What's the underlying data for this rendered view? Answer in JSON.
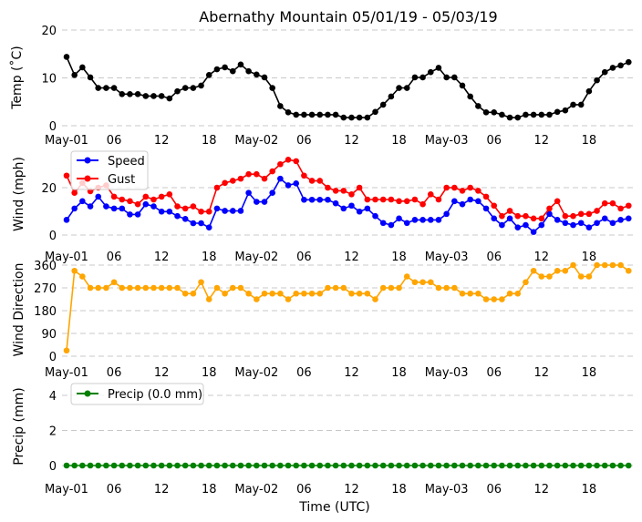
{
  "title": "Abernathy Mountain 05/01/19 - 05/03/19",
  "xlabel": "Time (UTC)",
  "x_tick_labels": [
    "May-01",
    "06",
    "12",
    "18",
    "May-02",
    "06",
    "12",
    "18",
    "May-03",
    "06",
    "12",
    "18"
  ],
  "chart_data": [
    {
      "type": "line",
      "ylabel": "Temp (˚C)",
      "yticks": [
        0,
        10,
        20
      ],
      "ylim": [
        0,
        20
      ],
      "grid": true,
      "time_step": "1 hour",
      "x_range": [
        "May-01 00:00",
        "May-03 23:00"
      ],
      "series": [
        {
          "color": "#000000",
          "values": [
            14.4,
            10.6,
            12.2,
            10.1,
            7.9,
            7.9,
            7.9,
            6.6,
            6.6,
            6.6,
            6.2,
            6.2,
            6.2,
            5.7,
            7.2,
            7.9,
            7.9,
            8.4,
            10.6,
            11.8,
            12.2,
            11.4,
            12.8,
            11.4,
            10.7,
            10.1,
            7.9,
            4.1,
            2.8,
            2.3,
            2.3,
            2.3,
            2.3,
            2.3,
            2.3,
            1.7,
            1.7,
            1.7,
            1.7,
            2.9,
            4.4,
            6.1,
            7.9,
            7.9,
            10.1,
            10.1,
            11.2,
            12.1,
            10.1,
            10.1,
            8.4,
            6.1,
            4.1,
            2.8,
            2.8,
            2.3,
            1.7,
            1.7,
            2.3,
            2.3,
            2.3,
            2.3,
            2.9,
            3.2,
            4.4,
            4.4,
            7.2,
            9.5,
            11.2,
            12.1,
            12.6,
            13.3
          ]
        }
      ]
    },
    {
      "type": "line",
      "ylabel": "Wind (mph)",
      "yticks": [
        0,
        20
      ],
      "grid": true,
      "legend": "top-left",
      "time_step": "1 hour",
      "x_range": [
        "May-01 00:00",
        "May-03 23:00"
      ],
      "series": [
        {
          "name": "Speed",
          "color": "#0000ff",
          "values": [
            6.4,
            11.2,
            14.3,
            12.1,
            16.2,
            12.1,
            11.2,
            11.2,
            8.7,
            8.7,
            13.0,
            12.1,
            9.9,
            9.9,
            8.0,
            6.8,
            5.0,
            5.0,
            3.2,
            11.2,
            10.2,
            10.2,
            10.2,
            17.8,
            14.0,
            14.0,
            17.8,
            23.8,
            21.0,
            21.8,
            14.9,
            14.9,
            14.9,
            14.9,
            13.4,
            11.2,
            12.4,
            9.9,
            11.2,
            8.0,
            5.1,
            4.2,
            7.0,
            5.1,
            6.4,
            6.4,
            6.4,
            6.4,
            8.9,
            14.3,
            13.0,
            15.0,
            14.3,
            11.2,
            7.0,
            4.2,
            7.0,
            3.2,
            4.2,
            1.3,
            4.2,
            8.9,
            6.4,
            5.1,
            4.2,
            5.1,
            3.2,
            5.1,
            7.0,
            5.1,
            6.4,
            7.0
          ]
        },
        {
          "name": "Gust",
          "color": "#ff0000",
          "values": [
            25.1,
            17.8,
            22.0,
            18.5,
            20.0,
            21.0,
            16.2,
            15.0,
            14.3,
            13.0,
            16.2,
            15.0,
            16.2,
            17.2,
            12.1,
            11.2,
            12.1,
            9.9,
            9.9,
            20.0,
            22.0,
            22.9,
            23.8,
            25.7,
            25.7,
            23.8,
            26.9,
            29.9,
            31.8,
            31.2,
            25.1,
            22.9,
            22.9,
            20.0,
            18.7,
            18.7,
            17.2,
            20.0,
            15.0,
            15.0,
            15.0,
            15.0,
            14.3,
            14.3,
            15.0,
            13.0,
            17.2,
            15.0,
            20.0,
            20.0,
            18.7,
            20.0,
            18.7,
            16.2,
            12.4,
            8.0,
            10.2,
            8.0,
            8.0,
            7.0,
            7.0,
            11.2,
            14.3,
            8.0,
            8.0,
            8.9,
            8.9,
            10.2,
            13.4,
            13.4,
            11.2,
            12.4
          ]
        }
      ]
    },
    {
      "type": "line",
      "ylabel": "Wind Direction",
      "yticks": [
        0,
        90,
        180,
        270,
        360
      ],
      "ylim": [
        0,
        360
      ],
      "grid": true,
      "time_step": "1 hour",
      "x_range": [
        "May-01 00:00",
        "May-03 23:00"
      ],
      "series": [
        {
          "color": "#ffa500",
          "values": [
            22.5,
            337.5,
            315,
            270,
            270,
            270,
            292.5,
            270,
            270,
            270,
            270,
            270,
            270,
            270,
            270,
            247.5,
            247.5,
            292.5,
            225,
            270,
            247.5,
            270,
            270,
            247.5,
            225,
            247.5,
            247.5,
            247.5,
            225,
            247.5,
            247.5,
            247.5,
            247.5,
            270,
            270,
            270,
            247.5,
            247.5,
            247.5,
            225,
            270,
            270,
            270,
            315,
            292.5,
            292.5,
            292.5,
            270,
            270,
            270,
            247.5,
            247.5,
            247.5,
            225,
            225,
            225,
            247.5,
            247.5,
            292.5,
            337.5,
            315,
            315,
            337.5,
            337.5,
            360,
            315,
            315,
            360,
            360,
            360,
            360,
            337.5
          ]
        }
      ]
    },
    {
      "type": "line",
      "ylabel": "Precip (mm)",
      "yticks": [
        0,
        2,
        4
      ],
      "grid": true,
      "legend": "top-left",
      "time_step": "1 hour",
      "x_range": [
        "May-01 00:00",
        "May-03 23:00"
      ],
      "series": [
        {
          "name": "Precip (0.0 mm)",
          "color": "#008000",
          "values": [
            0,
            0,
            0,
            0,
            0,
            0,
            0,
            0,
            0,
            0,
            0,
            0,
            0,
            0,
            0,
            0,
            0,
            0,
            0,
            0,
            0,
            0,
            0,
            0,
            0,
            0,
            0,
            0,
            0,
            0,
            0,
            0,
            0,
            0,
            0,
            0,
            0,
            0,
            0,
            0,
            0,
            0,
            0,
            0,
            0,
            0,
            0,
            0,
            0,
            0,
            0,
            0,
            0,
            0,
            0,
            0,
            0,
            0,
            0,
            0,
            0,
            0,
            0,
            0,
            0,
            0,
            0,
            0,
            0,
            0,
            0,
            0
          ]
        }
      ]
    }
  ]
}
